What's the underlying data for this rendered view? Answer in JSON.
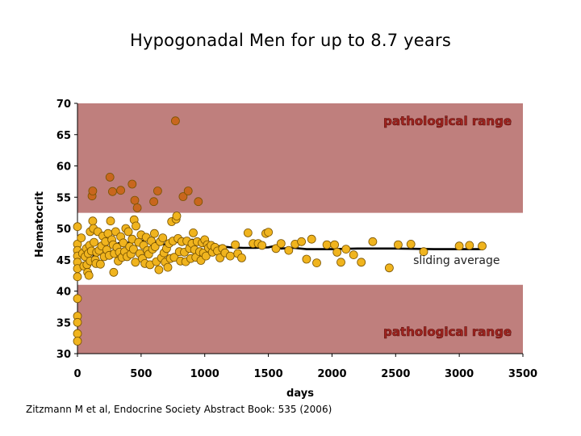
{
  "slide": {
    "title": "Hypogonadal Men for up to 8.7 years",
    "citation": "Zitzmann M et al, Endocrine Society Abstract Book: 535 (2006)"
  },
  "colors": {
    "pathological_band": "#bf7f7d",
    "normal_band": "#ffffff",
    "point_normal": "#f0b41e",
    "point_high": "#c8661e",
    "point_stroke": "#7a5400",
    "average_line": "#000000",
    "pathological_text": "#a3241f"
  },
  "chart_data": {
    "type": "scatter",
    "xlabel": "days",
    "ylabel": "Hematocrit",
    "xlim": [
      0,
      3500
    ],
    "ylim": [
      30,
      70
    ],
    "x_ticks": [
      0,
      500,
      1000,
      1500,
      2000,
      2500,
      3000,
      3500
    ],
    "y_ticks": [
      30,
      35,
      40,
      45,
      50,
      55,
      60,
      65,
      70
    ],
    "grid": false,
    "legend": "none",
    "bands": [
      {
        "label": "pathological range",
        "y_from": 52.5,
        "y_to": 70
      },
      {
        "label": "pathological range",
        "y_from": 30,
        "y_to": 41
      }
    ],
    "annotations": [
      {
        "text": "sliding average",
        "x": 3000,
        "y": 45
      }
    ],
    "series": [
      {
        "kind": "points",
        "points": [
          [
            0,
            50.3
          ],
          [
            0,
            47.5
          ],
          [
            0,
            46.5
          ],
          [
            0,
            45.6
          ],
          [
            0,
            44.6
          ],
          [
            0,
            43.6
          ],
          [
            0,
            42.3
          ],
          [
            0,
            38.8
          ],
          [
            0,
            36
          ],
          [
            0,
            35
          ],
          [
            0,
            33.2
          ],
          [
            0,
            32
          ],
          [
            30,
            48.5
          ],
          [
            40,
            46
          ],
          [
            50,
            44
          ],
          [
            60,
            45.5
          ],
          [
            70,
            46.8
          ],
          [
            75,
            44.2
          ],
          [
            80,
            43
          ],
          [
            85,
            46
          ],
          [
            90,
            42.5
          ],
          [
            95,
            47.3
          ],
          [
            100,
            49.5
          ],
          [
            100,
            44.8
          ],
          [
            110,
            46.4
          ],
          [
            115,
            55.2
          ],
          [
            120,
            51.2
          ],
          [
            120,
            56
          ],
          [
            125,
            50
          ],
          [
            130,
            47.8
          ],
          [
            140,
            45
          ],
          [
            145,
            44.4
          ],
          [
            150,
            46.2
          ],
          [
            160,
            49.5
          ],
          [
            170,
            46.5
          ],
          [
            180,
            44.3
          ],
          [
            190,
            47.2
          ],
          [
            200,
            48.8
          ],
          [
            210,
            45.5
          ],
          [
            220,
            47.9
          ],
          [
            230,
            46.6
          ],
          [
            240,
            49.2
          ],
          [
            250,
            45.7
          ],
          [
            255,
            58.2
          ],
          [
            260,
            51.2
          ],
          [
            270,
            48.2
          ],
          [
            275,
            55.9
          ],
          [
            280,
            47.4
          ],
          [
            285,
            43
          ],
          [
            290,
            46
          ],
          [
            300,
            49.5
          ],
          [
            310,
            47
          ],
          [
            320,
            44.8
          ],
          [
            330,
            46.2
          ],
          [
            340,
            56.1
          ],
          [
            340,
            48.7
          ],
          [
            350,
            45.4
          ],
          [
            360,
            47.7
          ],
          [
            370,
            46.3
          ],
          [
            380,
            50
          ],
          [
            390,
            45.5
          ],
          [
            400,
            49.5
          ],
          [
            410,
            47.1
          ],
          [
            420,
            45.9
          ],
          [
            430,
            57.1
          ],
          [
            430,
            48.3
          ],
          [
            440,
            46.7
          ],
          [
            445,
            51.4
          ],
          [
            450,
            54.5
          ],
          [
            455,
            44.6
          ],
          [
            460,
            50.4
          ],
          [
            470,
            53.3
          ],
          [
            480,
            47.8
          ],
          [
            490,
            46
          ],
          [
            500,
            49
          ],
          [
            510,
            45.2
          ],
          [
            520,
            47.3
          ],
          [
            530,
            44.4
          ],
          [
            540,
            48.6
          ],
          [
            550,
            46.5
          ],
          [
            560,
            45.9
          ],
          [
            570,
            44.2
          ],
          [
            580,
            48
          ],
          [
            590,
            46.7
          ],
          [
            600,
            54.3
          ],
          [
            605,
            49.2
          ],
          [
            610,
            47.1
          ],
          [
            620,
            44.7
          ],
          [
            630,
            56
          ],
          [
            640,
            43.4
          ],
          [
            650,
            47.9
          ],
          [
            660,
            45.3
          ],
          [
            670,
            48.5
          ],
          [
            680,
            46.1
          ],
          [
            690,
            44.6
          ],
          [
            700,
            46.8
          ],
          [
            710,
            43.8
          ],
          [
            720,
            47.6
          ],
          [
            730,
            45.2
          ],
          [
            740,
            51.1
          ],
          [
            750,
            48
          ],
          [
            760,
            45.4
          ],
          [
            770,
            67.2
          ],
          [
            775,
            51.5
          ],
          [
            780,
            52
          ],
          [
            790,
            48.4
          ],
          [
            800,
            46.3
          ],
          [
            810,
            44.8
          ],
          [
            820,
            47.9
          ],
          [
            830,
            55.1
          ],
          [
            840,
            46.2
          ],
          [
            850,
            44.7
          ],
          [
            860,
            48
          ],
          [
            870,
            56
          ],
          [
            880,
            46.8
          ],
          [
            890,
            45.2
          ],
          [
            900,
            47.6
          ],
          [
            910,
            49.3
          ],
          [
            920,
            46.6
          ],
          [
            930,
            45.4
          ],
          [
            940,
            47.9
          ],
          [
            950,
            54.3
          ],
          [
            960,
            46.3
          ],
          [
            970,
            44.9
          ],
          [
            980,
            47.7
          ],
          [
            990,
            46.1
          ],
          [
            1000,
            48.2
          ],
          [
            1010,
            45.6
          ],
          [
            1020,
            47.4
          ],
          [
            1030,
            46.9
          ],
          [
            1050,
            47.3
          ],
          [
            1060,
            46.2
          ],
          [
            1080,
            47
          ],
          [
            1100,
            46.4
          ],
          [
            1120,
            45.3
          ],
          [
            1140,
            46.8
          ],
          [
            1160,
            46.1
          ],
          [
            1200,
            45.6
          ],
          [
            1240,
            47.4
          ],
          [
            1260,
            46
          ],
          [
            1290,
            45.3
          ],
          [
            1340,
            49.3
          ],
          [
            1380,
            47.6
          ],
          [
            1420,
            47.6
          ],
          [
            1450,
            47.3
          ],
          [
            1480,
            49.2
          ],
          [
            1500,
            49.4
          ],
          [
            1560,
            46.8
          ],
          [
            1600,
            47.6
          ],
          [
            1660,
            46.5
          ],
          [
            1710,
            47.5
          ],
          [
            1760,
            47.9
          ],
          [
            1800,
            45.1
          ],
          [
            1840,
            48.3
          ],
          [
            1880,
            44.5
          ],
          [
            1960,
            47.4
          ],
          [
            2020,
            47.4
          ],
          [
            2040,
            46.2
          ],
          [
            2070,
            44.6
          ],
          [
            2110,
            46.7
          ],
          [
            2170,
            45.8
          ],
          [
            2230,
            44.6
          ],
          [
            2320,
            47.9
          ],
          [
            2450,
            43.7
          ],
          [
            2520,
            47.4
          ],
          [
            2620,
            47.5
          ],
          [
            2720,
            46.3
          ],
          [
            3000,
            47.2
          ],
          [
            3080,
            47.3
          ],
          [
            3180,
            47.2
          ]
        ]
      },
      {
        "kind": "line",
        "points": [
          [
            100,
            44.5
          ],
          [
            150,
            46.6
          ],
          [
            200,
            47.3
          ],
          [
            250,
            47
          ],
          [
            300,
            47.4
          ],
          [
            350,
            47.9
          ],
          [
            400,
            47.7
          ],
          [
            450,
            48.1
          ],
          [
            500,
            47.9
          ],
          [
            550,
            48.4
          ],
          [
            600,
            48.1
          ],
          [
            620,
            47.3
          ],
          [
            650,
            47.7
          ],
          [
            700,
            47.3
          ],
          [
            750,
            47.6
          ],
          [
            800,
            48
          ],
          [
            850,
            47.8
          ],
          [
            900,
            48.2
          ],
          [
            950,
            48
          ],
          [
            1000,
            47.7
          ],
          [
            1050,
            47.6
          ],
          [
            1100,
            47.2
          ],
          [
            1150,
            47.1
          ],
          [
            1200,
            47
          ],
          [
            1300,
            46.9
          ],
          [
            1400,
            46.9
          ],
          [
            1500,
            47
          ],
          [
            1550,
            47.2
          ],
          [
            1600,
            46.8
          ],
          [
            1700,
            46.9
          ],
          [
            1800,
            46.7
          ],
          [
            1900,
            46.7
          ],
          [
            2000,
            46.7
          ],
          [
            2200,
            46.8
          ],
          [
            2500,
            46.8
          ],
          [
            2800,
            46.7
          ],
          [
            3180,
            46.7
          ]
        ]
      }
    ]
  }
}
